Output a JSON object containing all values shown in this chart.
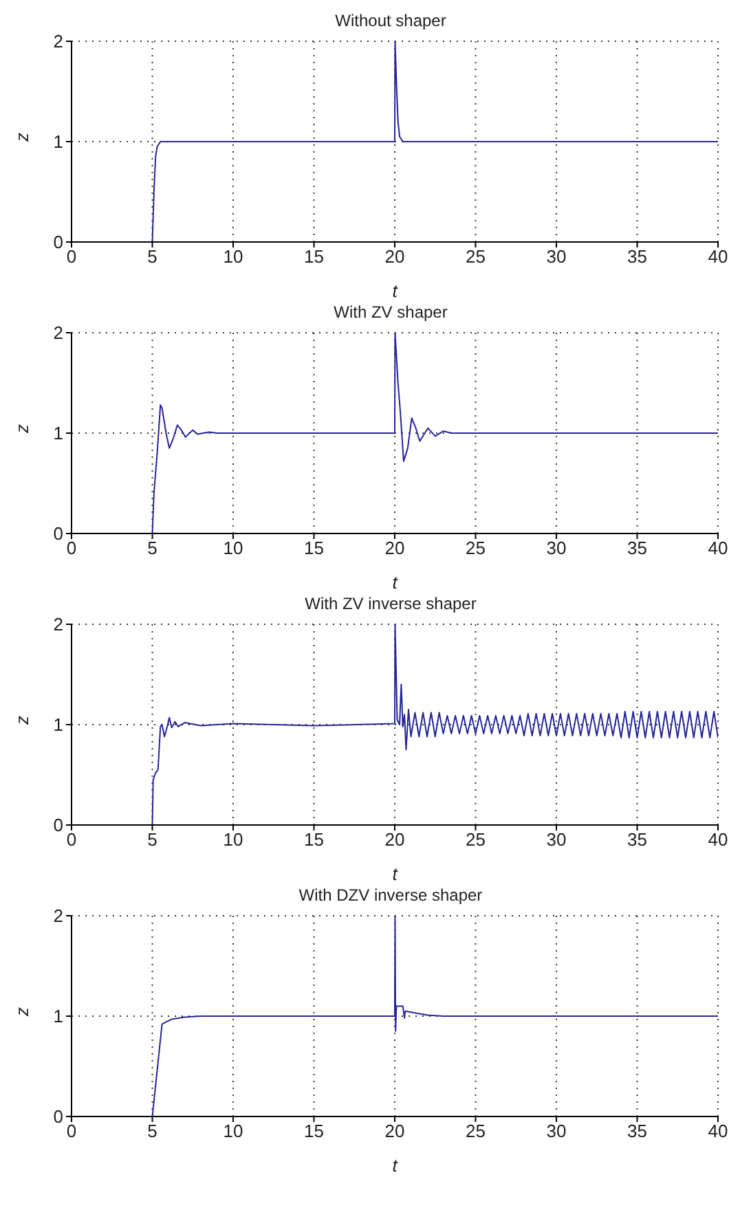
{
  "chart_data": [
    {
      "type": "line",
      "title": "Without shaper",
      "xlabel": "t",
      "ylabel": "z",
      "color": "#25259a",
      "xlim": [
        0,
        40
      ],
      "xticks": [
        0,
        5,
        10,
        15,
        20,
        25,
        30,
        35,
        40
      ],
      "ylim": [
        0,
        2
      ],
      "yticks": [
        0,
        1,
        2
      ],
      "grid": true,
      "x": [
        0,
        5,
        5.1,
        5.2,
        5.3,
        5.5,
        20,
        20.02,
        20.1,
        20.2,
        20.3,
        20.5,
        40
      ],
      "values": [
        0,
        0,
        0.5,
        0.85,
        0.95,
        1,
        1,
        2,
        1.6,
        1.2,
        1.05,
        1,
        1
      ]
    },
    {
      "type": "line",
      "title": "With ZV shaper",
      "xlabel": "t",
      "ylabel": "z",
      "color": "#25259a",
      "xlim": [
        0,
        40
      ],
      "xticks": [
        0,
        5,
        10,
        15,
        20,
        25,
        30,
        35,
        40
      ],
      "ylim": [
        0,
        2
      ],
      "yticks": [
        0,
        1,
        2
      ],
      "grid": true,
      "x": [
        0,
        5,
        5.1,
        5.3,
        5.5,
        5.6,
        5.85,
        6.05,
        6.3,
        6.55,
        6.8,
        7.05,
        7.3,
        7.5,
        7.8,
        8.5,
        9,
        20,
        20.02,
        20.2,
        20.35,
        20.55,
        20.8,
        21.05,
        21.3,
        21.55,
        22.05,
        22.5,
        23,
        23.5,
        40
      ],
      "values": [
        0,
        0,
        0.4,
        0.8,
        1.28,
        1.25,
        1,
        0.85,
        0.95,
        1.08,
        1.03,
        0.96,
        1,
        1.03,
        0.99,
        1.01,
        1,
        1,
        2,
        1.5,
        1.2,
        0.72,
        0.85,
        1.15,
        1.05,
        0.92,
        1.05,
        0.97,
        1.02,
        1,
        1
      ]
    },
    {
      "type": "line",
      "title": "With ZV inverse shaper",
      "xlabel": "t",
      "ylabel": "z",
      "color": "#25259a",
      "xlim": [
        0,
        40
      ],
      "xticks": [
        0,
        5,
        10,
        15,
        20,
        25,
        30,
        35,
        40
      ],
      "ylim": [
        0,
        2
      ],
      "yticks": [
        0,
        1,
        2
      ],
      "grid": true,
      "x": [
        0,
        5,
        5.05,
        5.2,
        5.35,
        5.5,
        5.6,
        5.75,
        5.95,
        6.05,
        6.2,
        6.4,
        6.6,
        7,
        8,
        10,
        15,
        20,
        20.02,
        20.15,
        20.3,
        20.4,
        20.5,
        20.6,
        20.7,
        20.85,
        21,
        21.25,
        21.5,
        21.75,
        22,
        22.25,
        22.5,
        22.75,
        23,
        23.25,
        23.5,
        23.75,
        24,
        24.25,
        24.5,
        24.75,
        25,
        25.25,
        25.5,
        25.75,
        26,
        26.25,
        26.5,
        26.75,
        27,
        27.25,
        27.5,
        27.75,
        28,
        28.25,
        28.5,
        28.75,
        29,
        29.25,
        29.5,
        29.75,
        30,
        30.25,
        30.5,
        30.75,
        31,
        31.25,
        31.5,
        31.75,
        32,
        32.25,
        32.5,
        32.75,
        33,
        33.25,
        33.5,
        33.75,
        34,
        34.25,
        34.5,
        34.75,
        35,
        35.25,
        35.5,
        35.75,
        36,
        36.25,
        36.5,
        36.75,
        37,
        37.25,
        37.5,
        37.75,
        38,
        38.25,
        38.5,
        38.75,
        39,
        39.25,
        39.5,
        39.75,
        40
      ],
      "values": [
        0,
        0,
        0.45,
        0.52,
        0.55,
        0.98,
        1,
        0.88,
        1,
        1.07,
        0.97,
        1.03,
        0.98,
        1.02,
        0.99,
        1.01,
        0.99,
        1.01,
        2,
        1.05,
        1,
        1.4,
        0.98,
        1.1,
        0.75,
        1.15,
        0.88,
        1.12,
        0.88,
        1.12,
        0.88,
        1.12,
        0.88,
        1.12,
        0.91,
        1.09,
        0.91,
        1.09,
        0.91,
        1.09,
        0.91,
        1.09,
        0.91,
        1.09,
        0.91,
        1.09,
        0.91,
        1.09,
        0.91,
        1.09,
        0.91,
        1.09,
        0.91,
        1.09,
        0.89,
        1.11,
        0.89,
        1.11,
        0.89,
        1.11,
        0.89,
        1.11,
        0.89,
        1.11,
        0.89,
        1.11,
        0.89,
        1.11,
        0.89,
        1.11,
        0.89,
        1.11,
        0.89,
        1.11,
        0.89,
        1.11,
        0.89,
        1.11,
        0.87,
        1.13,
        0.87,
        1.13,
        0.87,
        1.13,
        0.87,
        1.13,
        0.87,
        1.13,
        0.87,
        1.13,
        0.87,
        1.13,
        0.87,
        1.13,
        0.87,
        1.13,
        0.87,
        1.13,
        0.87,
        1.13,
        0.87,
        1.13,
        0.87
      ]
    },
    {
      "type": "line",
      "title": "With DZV inverse shaper",
      "xlabel": "t",
      "ylabel": "z",
      "color": "#25259a",
      "xlim": [
        0,
        40
      ],
      "xticks": [
        0,
        5,
        10,
        15,
        20,
        25,
        30,
        35,
        40
      ],
      "ylim": [
        0,
        2
      ],
      "yticks": [
        0,
        1,
        2
      ],
      "grid": true,
      "x": [
        0,
        5,
        5.6,
        6.2,
        7,
        8,
        20,
        20.02,
        20.05,
        20.1,
        20.5,
        20.6,
        20.65,
        21,
        22,
        23,
        40
      ],
      "values": [
        0,
        0,
        0.92,
        0.97,
        0.99,
        1,
        1,
        2,
        0.85,
        1.1,
        1.1,
        0.98,
        1.05,
        1.04,
        1.01,
        1,
        1
      ]
    }
  ]
}
